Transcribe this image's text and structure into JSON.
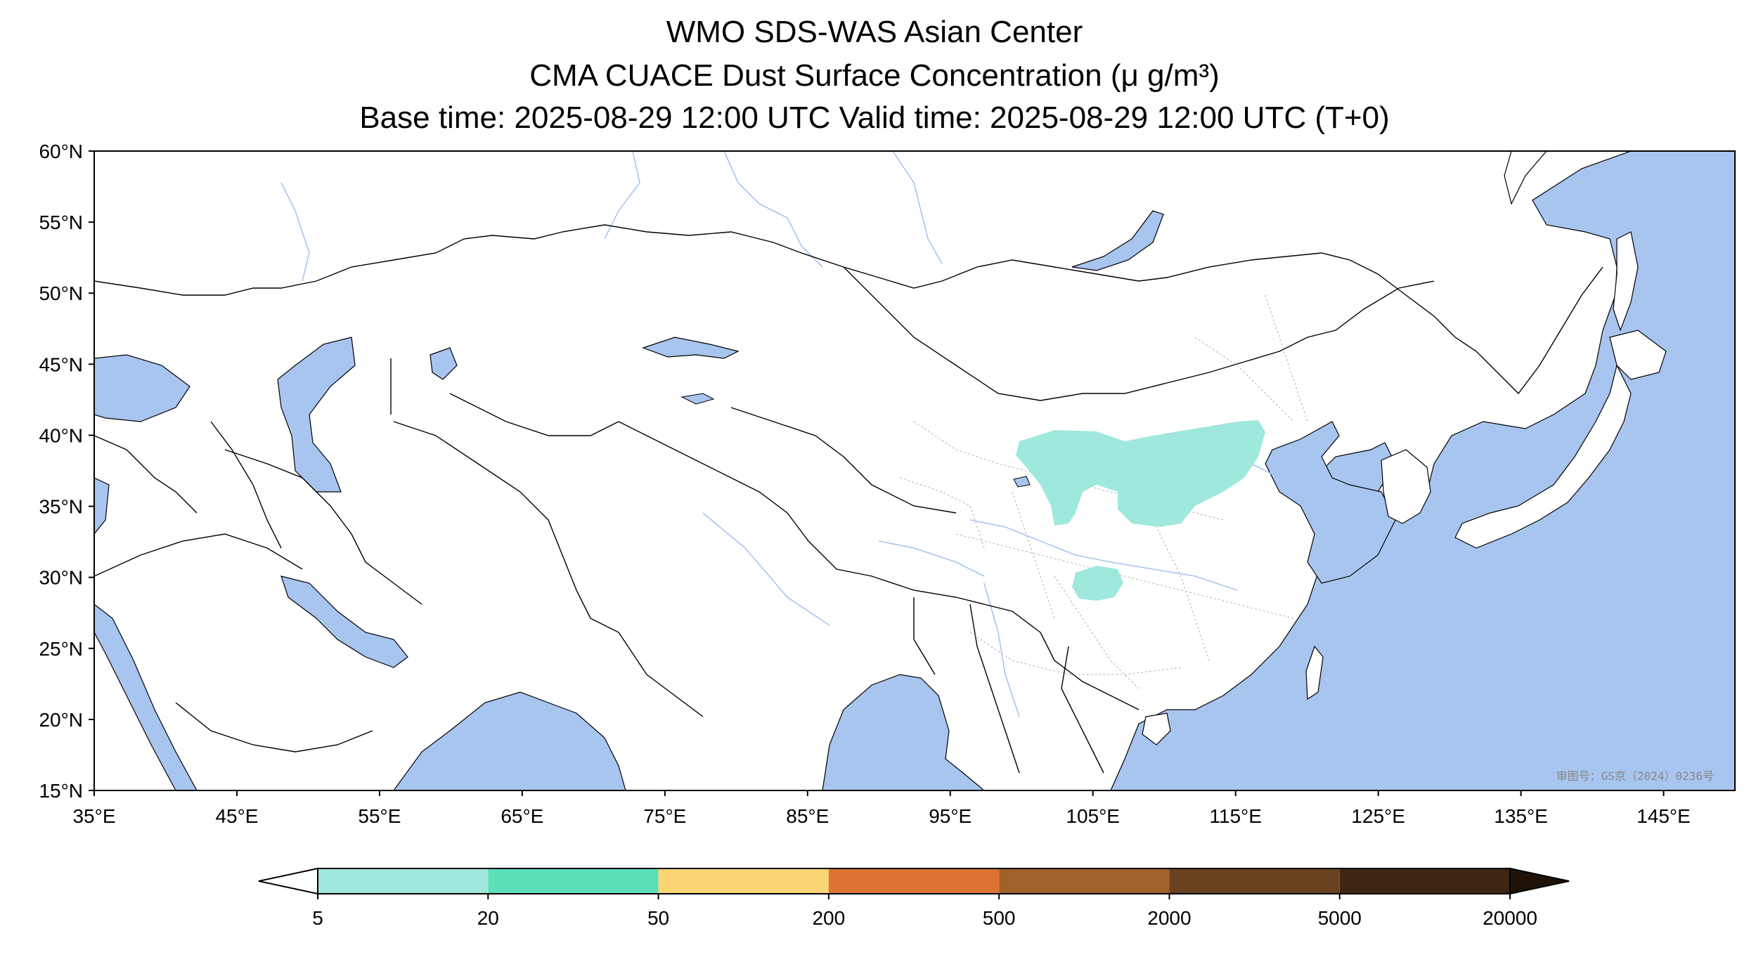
{
  "titles": {
    "line1": "WMO SDS-WAS Asian Center",
    "line2": "CMA CUACE Dust Surface Concentration (μ g/m³)",
    "line3": "Base time: 2025-08-29 12:00 UTC Valid time: 2025-08-29 12:00 UTC (T+0)"
  },
  "axes": {
    "lat_labels": [
      "60°N",
      "55°N",
      "50°N",
      "45°N",
      "40°N",
      "35°N",
      "30°N",
      "25°N",
      "20°N",
      "15°N"
    ],
    "lon_labels": [
      "35°E",
      "45°E",
      "55°E",
      "65°E",
      "75°E",
      "85°E",
      "95°E",
      "105°E",
      "115°E",
      "125°E",
      "135°E",
      "145°E"
    ],
    "lon_range": [
      35,
      150
    ],
    "lat_range": [
      15,
      60
    ]
  },
  "colorbar": {
    "ticks": [
      "5",
      "20",
      "50",
      "200",
      "500",
      "2000",
      "5000",
      "20000"
    ],
    "colors": [
      "#ffffff",
      "#9fe8dc",
      "#5ddfb9",
      "#f9d574",
      "#dc7332",
      "#a0622a",
      "#6a4220",
      "#3d2614",
      "#1e1208"
    ]
  },
  "map_colors": {
    "ocean": "#a8c5ef",
    "land": "#ffffff",
    "dust_low": "#9fe8dc",
    "border": "#000000",
    "river": "#a8c5ef"
  },
  "approval_note": "审图号：GS京（2024）0236号"
}
